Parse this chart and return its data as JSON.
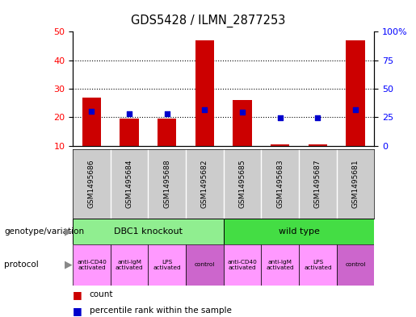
{
  "title": "GDS5428 / ILMN_2877253",
  "samples": [
    "GSM1495686",
    "GSM1495684",
    "GSM1495688",
    "GSM1495682",
    "GSM1495685",
    "GSM1495683",
    "GSM1495687",
    "GSM1495681"
  ],
  "counts": [
    27,
    19.5,
    19.5,
    47,
    26,
    10.5,
    10.5,
    47
  ],
  "percentiles": [
    30,
    28,
    28,
    32,
    29.5,
    24.5,
    24.5,
    32
  ],
  "ylim_left": [
    10,
    50
  ],
  "ylim_right": [
    0,
    100
  ],
  "yticks_left": [
    10,
    20,
    30,
    40,
    50
  ],
  "yticks_right": [
    0,
    25,
    50,
    75,
    100
  ],
  "ytick_right_labels": [
    "0",
    "25",
    "50",
    "75",
    "100%"
  ],
  "bar_color": "#cc0000",
  "dot_color": "#0000cc",
  "sample_bg_color": "#cccccc",
  "geno_color_dbc1": "#90EE90",
  "geno_color_wt": "#44DD44",
  "prot_color_activated": "#FF99FF",
  "prot_color_control": "#CC66CC",
  "bar_width": 0.5,
  "legend_count_color": "#cc0000",
  "legend_pct_color": "#0000cc",
  "prot_labels": [
    "anti-CD40\nactivated",
    "anti-IgM\nactivated",
    "LPS\nactivated",
    "control",
    "anti-CD40\nactivated",
    "anti-IgM\nactivated",
    "LPS\nactivated",
    "control"
  ],
  "prot_is_control": [
    false,
    false,
    false,
    true,
    false,
    false,
    false,
    true
  ]
}
